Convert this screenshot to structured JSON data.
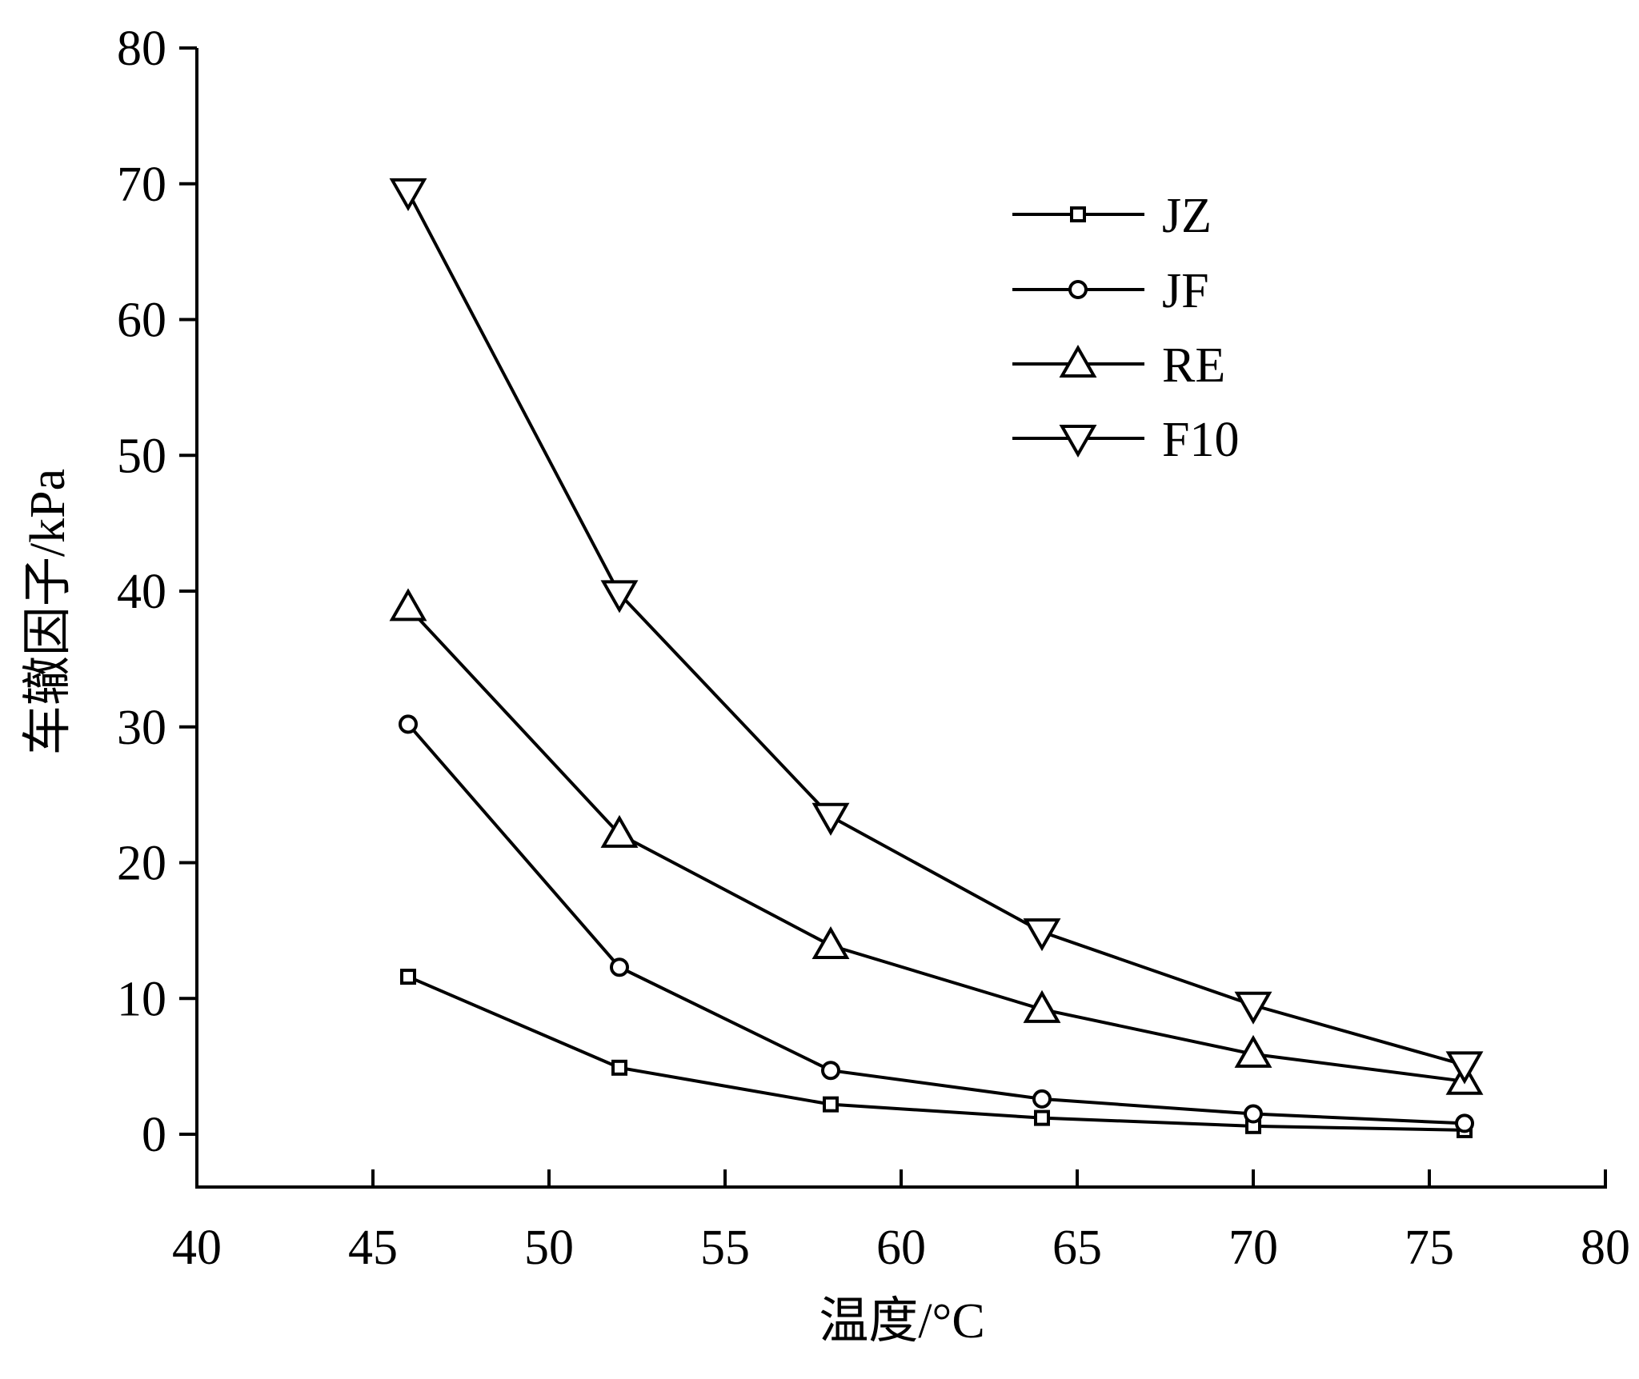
{
  "chart_data": {
    "type": "line",
    "xlabel": "温度/°C",
    "ylabel": "车辙因子/kPa",
    "xlim": [
      40,
      80
    ],
    "ylim": [
      0,
      80
    ],
    "xticks": [
      "40",
      "45",
      "50",
      "55",
      "60",
      "65",
      "70",
      "75",
      "80"
    ],
    "yticks": [
      "0",
      "10",
      "20",
      "30",
      "40",
      "50",
      "60",
      "70",
      "80"
    ],
    "grid": false,
    "legend_position": "top-right",
    "x": [
      46,
      52,
      58,
      64,
      70,
      76
    ],
    "series": [
      {
        "name": "JZ",
        "marker": "square",
        "values": [
          11.6,
          4.9,
          2.2,
          1.2,
          0.6,
          0.3
        ]
      },
      {
        "name": "JF",
        "marker": "circle",
        "values": [
          30.2,
          12.3,
          4.7,
          2.6,
          1.5,
          0.8
        ]
      },
      {
        "name": "RE",
        "marker": "triangle-up",
        "values": [
          38.8,
          22.1,
          13.9,
          9.2,
          5.9,
          3.9
        ]
      },
      {
        "name": "F10",
        "marker": "triangle-down",
        "values": [
          69.4,
          39.8,
          23.4,
          14.9,
          9.5,
          5.1
        ]
      }
    ]
  }
}
